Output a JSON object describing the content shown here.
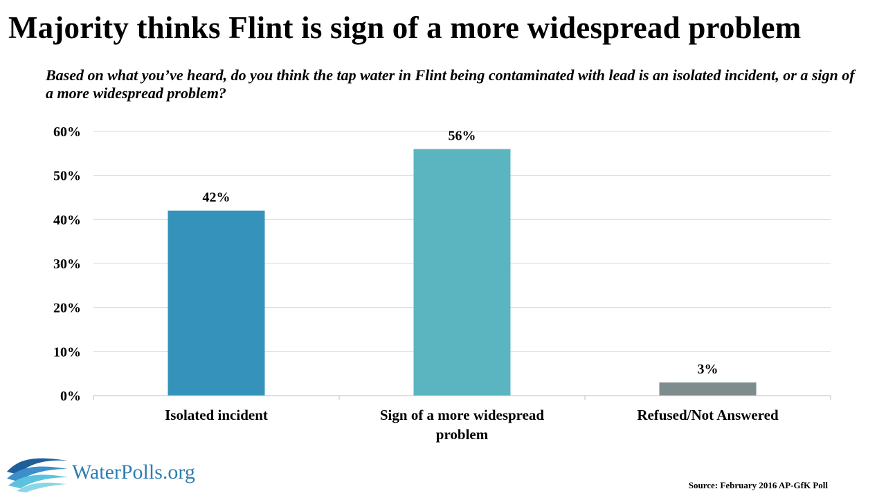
{
  "title": "Majority thinks Flint is sign of  a more widespread problem",
  "subtitle": "Based on what you’ve heard, do you think the tap water in Flint being contaminated with lead is an isolated incident, or a sign of a more widespread problem?",
  "chart_data": {
    "type": "bar",
    "categories": [
      [
        "Isolated incident"
      ],
      [
        "Sign of a more widespread",
        "problem"
      ],
      [
        "Refused/Not Answered"
      ]
    ],
    "values": [
      42,
      56,
      3
    ],
    "value_labels": [
      "42%",
      "56%",
      "3%"
    ],
    "bar_colors": [
      "#3593BB",
      "#5BB5C0",
      "#7F8C8D"
    ],
    "ylim": [
      0,
      60
    ],
    "yticks": [
      0,
      10,
      20,
      30,
      40,
      50,
      60
    ],
    "ytick_labels": [
      "0%",
      "10%",
      "20%",
      "30%",
      "40%",
      "50%",
      "60%"
    ],
    "xlabel": "",
    "ylabel": "",
    "grid": true,
    "legend": "none"
  },
  "logo": {
    "text": "WaterPolls.org",
    "text_color": "#2E7DB0"
  },
  "source": "Source: February 2016 AP-GfK Poll",
  "colors": {
    "gridline": "#D9D9D9",
    "axis": "#BFBFBF",
    "logo_wave_dark": "#1F5E99",
    "logo_wave_mid": "#3C8FC9",
    "logo_wave_light": "#5BC3DE"
  }
}
